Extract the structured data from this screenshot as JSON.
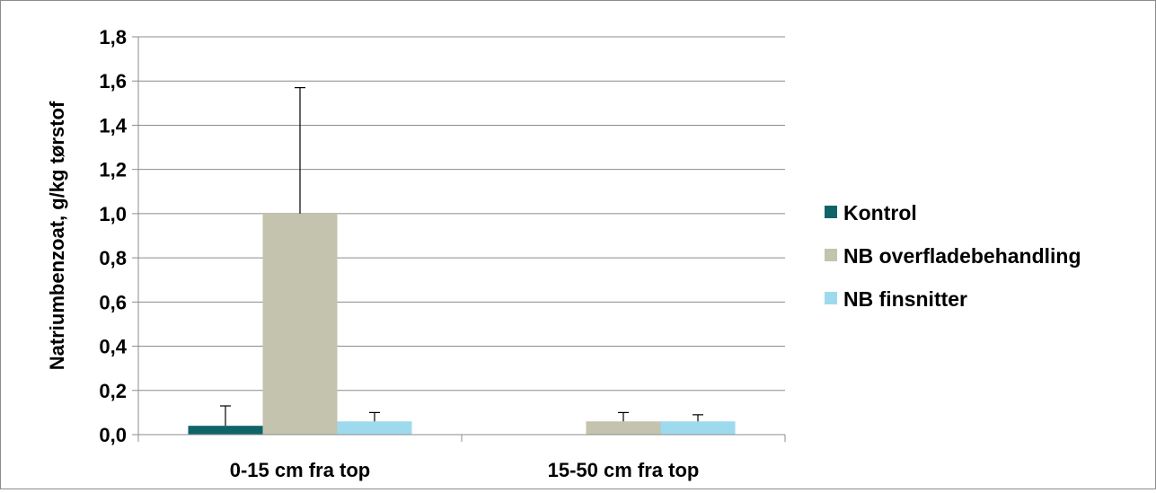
{
  "chart_data": {
    "type": "bar",
    "title": "",
    "xlabel": "",
    "ylabel": "Natriumbenzoat, g/kg tørstof",
    "ylim": [
      0,
      1.8
    ],
    "grid": true,
    "legend_position": "right",
    "y_ticks": [
      "0,0",
      "0,2",
      "0,4",
      "0,6",
      "0,8",
      "1,0",
      "1,2",
      "1,4",
      "1,6",
      "1,8"
    ],
    "categories": [
      "0-15 cm fra top",
      "15-50 cm fra top"
    ],
    "series": [
      {
        "name": "Kontrol",
        "color": "#0f6468",
        "values": [
          0.04,
          0
        ],
        "error": [
          0.09,
          0
        ]
      },
      {
        "name": "NB overfladebehandling",
        "color": "#c4c3ad",
        "values": [
          1.0,
          0.06
        ],
        "error": [
          0.57,
          0.04
        ]
      },
      {
        "name": "NB finsnitter",
        "color": "#9edaee",
        "values": [
          0.06,
          0.06
        ],
        "error": [
          0.04,
          0.03
        ]
      }
    ]
  }
}
